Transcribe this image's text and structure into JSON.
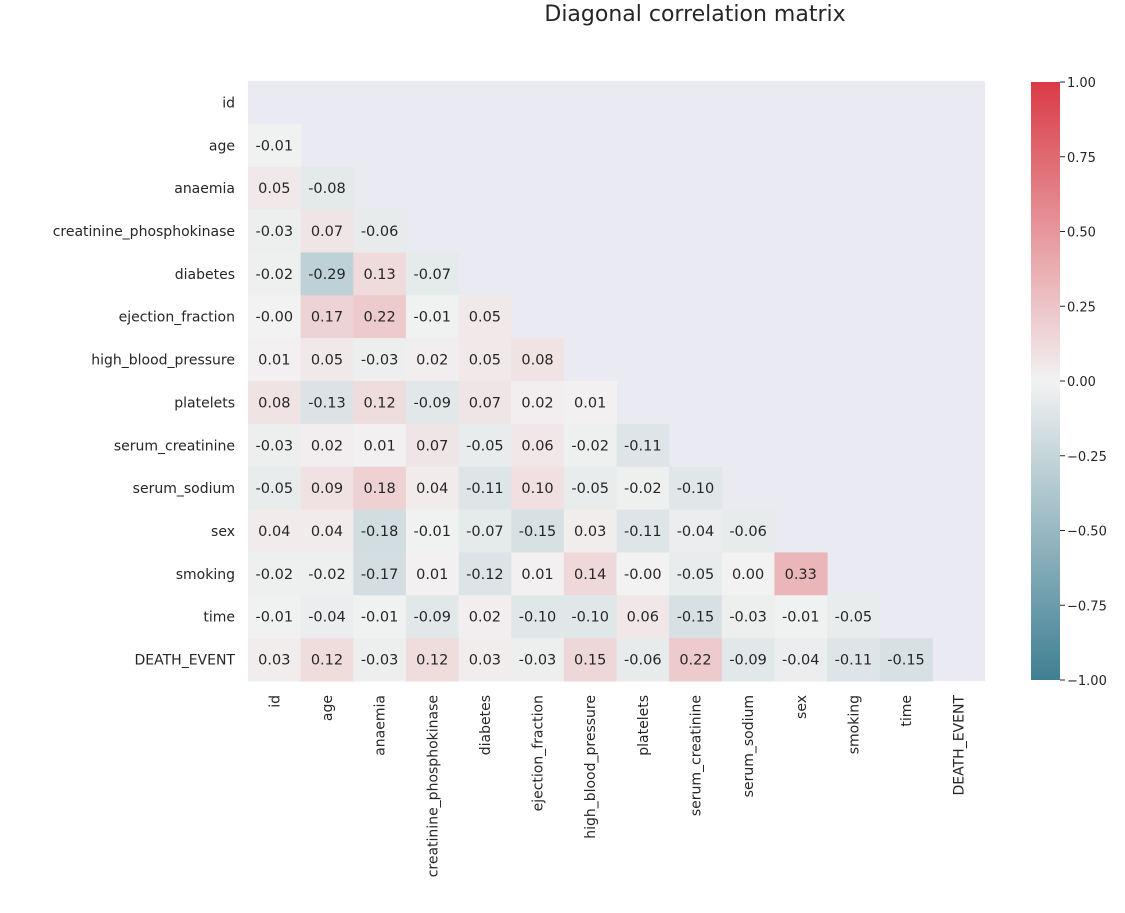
{
  "chart_data": {
    "type": "heatmap",
    "title": "Diagonal correlation matrix",
    "variables": [
      "id",
      "age",
      "anaemia",
      "creatinine_phosphokinase",
      "diabetes",
      "ejection_fraction",
      "high_blood_pressure",
      "platelets",
      "serum_creatinine",
      "serum_sodium",
      "sex",
      "smoking",
      "time",
      "DEATH_EVENT"
    ],
    "mask": "upper triangle including diagonal",
    "lower_triangle": [
      [],
      [
        -0.01
      ],
      [
        0.05,
        -0.08
      ],
      [
        -0.03,
        0.07,
        -0.06
      ],
      [
        -0.02,
        -0.29,
        0.13,
        -0.07
      ],
      [
        -0.0,
        0.17,
        0.22,
        -0.01,
        0.05
      ],
      [
        0.01,
        0.05,
        -0.03,
        0.02,
        0.05,
        0.08
      ],
      [
        0.08,
        -0.13,
        0.12,
        -0.09,
        0.07,
        0.02,
        0.01
      ],
      [
        -0.03,
        0.02,
        0.01,
        0.07,
        -0.05,
        0.06,
        -0.02,
        -0.11
      ],
      [
        -0.05,
        0.09,
        0.18,
        0.04,
        -0.11,
        0.1,
        -0.05,
        -0.02,
        -0.1
      ],
      [
        0.04,
        0.04,
        -0.18,
        -0.01,
        -0.07,
        -0.15,
        0.03,
        -0.11,
        -0.04,
        -0.06
      ],
      [
        -0.02,
        -0.02,
        -0.17,
        0.01,
        -0.12,
        0.01,
        0.14,
        -0.0,
        -0.05,
        0.0,
        0.33
      ],
      [
        -0.01,
        -0.04,
        -0.01,
        -0.09,
        0.02,
        -0.1,
        -0.1,
        0.06,
        -0.15,
        -0.03,
        -0.01,
        -0.05
      ],
      [
        0.03,
        0.12,
        -0.03,
        0.12,
        0.03,
        -0.03,
        0.15,
        -0.06,
        0.22,
        -0.09,
        -0.04,
        -0.11,
        -0.15
      ]
    ],
    "annotation_format": "0.00",
    "vmin": -1.0,
    "vmax": 1.0,
    "colormap": {
      "negative": "#3f7f93",
      "center": "#f2f2f2",
      "positive": "#da3b46"
    },
    "colorbar_ticks": [
      "1.00",
      "0.75",
      "0.50",
      "0.25",
      "0.00",
      "−0.25",
      "−0.50",
      "−0.75",
      "−1.00"
    ],
    "colorbar_tick_values": [
      1.0,
      0.75,
      0.5,
      0.25,
      0.0,
      -0.25,
      -0.5,
      -0.75,
      -1.0
    ],
    "background_color": "#eaeaf2",
    "grid": false
  }
}
